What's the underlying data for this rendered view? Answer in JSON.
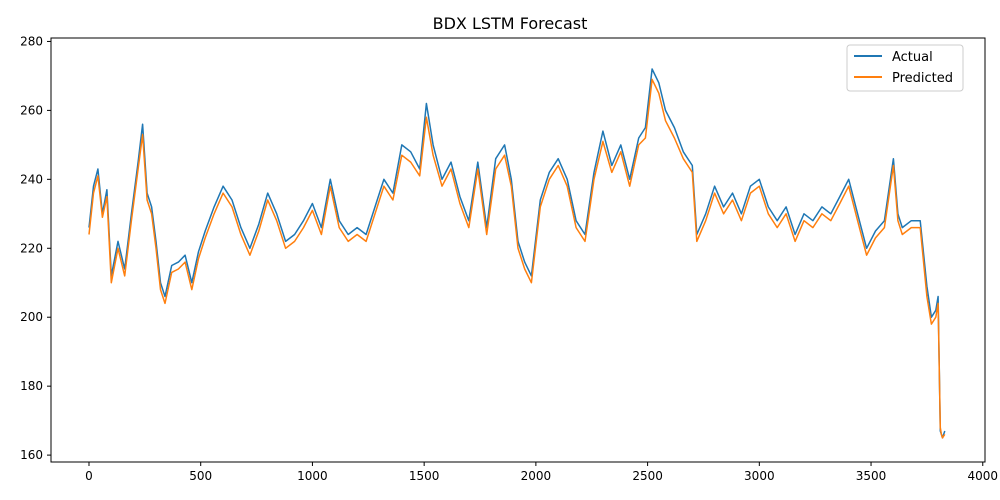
{
  "chart_data": {
    "type": "line",
    "title": "BDX LSTM Forecast",
    "xlabel": "",
    "ylabel": "",
    "xlim": [
      -170,
      4010
    ],
    "ylim": [
      158,
      281
    ],
    "x_ticks": [
      0,
      500,
      1000,
      1500,
      2000,
      2500,
      3000,
      3500,
      4000
    ],
    "y_ticks": [
      160,
      180,
      200,
      220,
      240,
      260,
      280
    ],
    "legend": {
      "placement": "top-right"
    },
    "grid": false,
    "series": [
      {
        "name": "Actual",
        "color": "#1f77b4",
        "x": [
          0,
          20,
          40,
          60,
          80,
          100,
          130,
          160,
          190,
          220,
          240,
          260,
          280,
          300,
          320,
          340,
          370,
          400,
          430,
          460,
          490,
          520,
          560,
          600,
          640,
          680,
          720,
          760,
          800,
          840,
          880,
          920,
          960,
          1000,
          1040,
          1080,
          1120,
          1160,
          1200,
          1240,
          1280,
          1320,
          1360,
          1400,
          1440,
          1480,
          1510,
          1540,
          1580,
          1620,
          1660,
          1700,
          1740,
          1780,
          1820,
          1860,
          1890,
          1920,
          1950,
          1980,
          2020,
          2060,
          2100,
          2140,
          2180,
          2220,
          2260,
          2300,
          2340,
          2380,
          2420,
          2460,
          2490,
          2520,
          2550,
          2580,
          2620,
          2660,
          2700,
          2720,
          2760,
          2800,
          2840,
          2880,
          2920,
          2960,
          3000,
          3040,
          3080,
          3120,
          3160,
          3200,
          3240,
          3280,
          3320,
          3360,
          3400,
          3440,
          3480,
          3520,
          3560,
          3600,
          3620,
          3640,
          3680,
          3720,
          3750,
          3770,
          3790,
          3800,
          3810,
          3815,
          3820,
          3830
        ],
        "y": [
          226,
          238,
          243,
          230,
          237,
          212,
          222,
          214,
          230,
          245,
          256,
          236,
          232,
          222,
          210,
          206,
          215,
          216,
          218,
          210,
          219,
          225,
          232,
          238,
          234,
          226,
          220,
          227,
          236,
          230,
          222,
          224,
          228,
          233,
          226,
          240,
          228,
          224,
          226,
          224,
          232,
          240,
          236,
          250,
          248,
          243,
          262,
          250,
          240,
          245,
          235,
          228,
          245,
          226,
          246,
          250,
          240,
          222,
          216,
          212,
          234,
          242,
          246,
          240,
          228,
          224,
          242,
          254,
          244,
          250,
          240,
          252,
          255,
          272,
          268,
          260,
          255,
          248,
          244,
          224,
          230,
          238,
          232,
          236,
          230,
          238,
          240,
          232,
          228,
          232,
          224,
          230,
          228,
          232,
          230,
          235,
          240,
          230,
          220,
          225,
          228,
          246,
          230,
          226,
          228,
          228,
          209,
          200,
          202,
          206,
          167,
          166,
          165,
          167
        ]
      },
      {
        "name": "Predicted",
        "color": "#ff7f0e",
        "x": [
          0,
          20,
          40,
          60,
          80,
          100,
          130,
          160,
          190,
          220,
          240,
          260,
          280,
          300,
          320,
          340,
          370,
          400,
          430,
          460,
          490,
          520,
          560,
          600,
          640,
          680,
          720,
          760,
          800,
          840,
          880,
          920,
          960,
          1000,
          1040,
          1080,
          1120,
          1160,
          1200,
          1240,
          1280,
          1320,
          1360,
          1400,
          1440,
          1480,
          1510,
          1540,
          1580,
          1620,
          1660,
          1700,
          1740,
          1780,
          1820,
          1860,
          1890,
          1920,
          1950,
          1980,
          2020,
          2060,
          2100,
          2140,
          2180,
          2220,
          2260,
          2300,
          2340,
          2380,
          2420,
          2460,
          2490,
          2520,
          2550,
          2580,
          2620,
          2660,
          2700,
          2720,
          2760,
          2800,
          2840,
          2880,
          2920,
          2960,
          3000,
          3040,
          3080,
          3120,
          3160,
          3200,
          3240,
          3280,
          3320,
          3360,
          3400,
          3440,
          3480,
          3520,
          3560,
          3600,
          3620,
          3640,
          3680,
          3720,
          3750,
          3770,
          3790,
          3800,
          3810,
          3815,
          3820,
          3830
        ],
        "y": [
          224,
          236,
          241,
          229,
          235,
          210,
          220,
          212,
          228,
          243,
          253,
          234,
          230,
          220,
          208,
          204,
          213,
          214,
          216,
          208,
          217,
          223,
          230,
          236,
          232,
          224,
          218,
          225,
          234,
          228,
          220,
          222,
          226,
          231,
          224,
          238,
          226,
          222,
          224,
          222,
          230,
          238,
          234,
          247,
          245,
          241,
          258,
          247,
          238,
          243,
          233,
          226,
          243,
          224,
          243,
          247,
          238,
          220,
          214,
          210,
          232,
          240,
          244,
          238,
          226,
          222,
          240,
          251,
          242,
          248,
          238,
          250,
          252,
          269,
          265,
          257,
          252,
          246,
          242,
          222,
          228,
          236,
          230,
          234,
          228,
          236,
          238,
          230,
          226,
          230,
          222,
          228,
          226,
          230,
          228,
          233,
          238,
          228,
          218,
          223,
          226,
          244,
          228,
          224,
          226,
          226,
          206,
          198,
          200,
          204,
          168,
          166,
          165,
          166
        ]
      }
    ]
  }
}
